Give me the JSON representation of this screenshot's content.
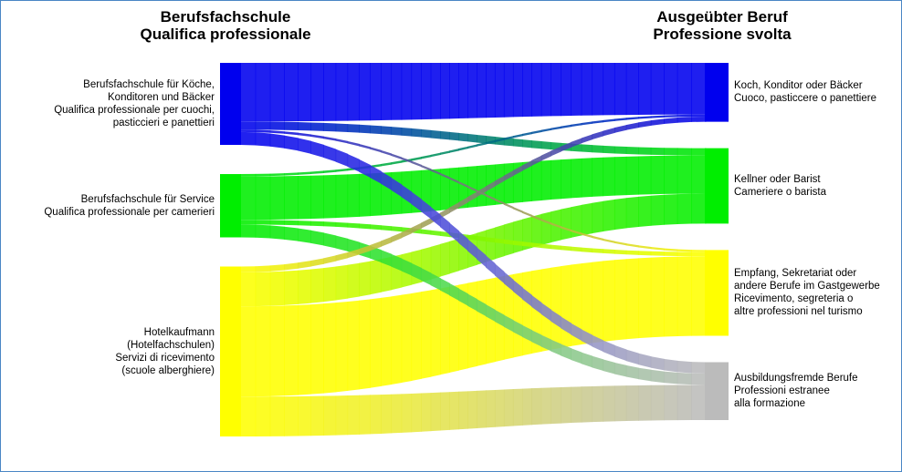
{
  "chart_data": {
    "type": "sankey",
    "headers": {
      "left": [
        "Berufsfachschule",
        "Qualifica professionale"
      ],
      "right": [
        "Ausgeübter Beruf",
        "Professione svolta"
      ]
    },
    "sources": [
      {
        "id": "koch",
        "label": [
          "Berufsfachschule für Köche,",
          "Konditoren und Bäcker",
          "Qualifica professionale per cuochi,",
          "pasticcieri e panettieri"
        ],
        "color": "#0000ee"
      },
      {
        "id": "service",
        "label": [
          "Berufsfachschule für Service",
          "Qualifica professionale per camerieri"
        ],
        "color": "#00ee00"
      },
      {
        "id": "hotel",
        "label": [
          "Hotelkaufmann",
          "(Hotelfachschulen)",
          "Servizi di ricevimento",
          "(scuole alberghiere)"
        ],
        "color": "#ffff00"
      }
    ],
    "targets": [
      {
        "id": "koch",
        "label": [
          "Koch, Konditor oder Bäcker",
          "Cuoco, pasticcere o panettiere"
        ],
        "color": "#0000ee"
      },
      {
        "id": "kellner",
        "label": [
          "Kellner oder Barist",
          "Cameriere o barista"
        ],
        "color": "#00ee00"
      },
      {
        "id": "empfang",
        "label": [
          "Empfang, Sekretariat oder",
          "andere Berufe im Gastgewerbe",
          "Ricevimento, segreteria o",
          "altre professioni nel turismo"
        ],
        "color": "#ffff00"
      },
      {
        "id": "fremd",
        "label": [
          "Ausbildungsfremde Berufe",
          "Professioni estranee",
          "alla formazione"
        ],
        "color": "#bbbbbb"
      }
    ],
    "flows": [
      {
        "from": "koch",
        "to": "koch",
        "value": 50
      },
      {
        "from": "koch",
        "to": "kellner",
        "value": 7
      },
      {
        "from": "koch",
        "to": "empfang",
        "value": 2
      },
      {
        "from": "koch",
        "to": "fremd",
        "value": 11
      },
      {
        "from": "service",
        "to": "koch",
        "value": 2
      },
      {
        "from": "service",
        "to": "kellner",
        "value": 37
      },
      {
        "from": "service",
        "to": "empfang",
        "value": 4
      },
      {
        "from": "service",
        "to": "fremd",
        "value": 11
      },
      {
        "from": "hotel",
        "to": "koch",
        "value": 5
      },
      {
        "from": "hotel",
        "to": "kellner",
        "value": 29
      },
      {
        "from": "hotel",
        "to": "empfang",
        "value": 77
      },
      {
        "from": "hotel",
        "to": "fremd",
        "value": 34
      }
    ]
  }
}
